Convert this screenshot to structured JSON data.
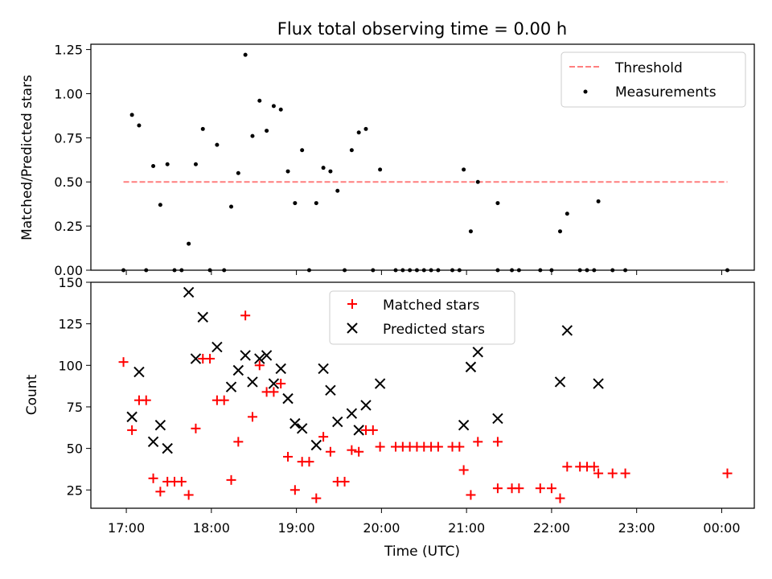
{
  "chart_data": [
    {
      "type": "scatter",
      "title": "Flux total observing time = 0.00 h",
      "xlabel": "",
      "ylabel": "Matched/Predicted stars",
      "ylim": [
        0,
        1.28
      ],
      "yticks": [
        "0.00",
        "0.25",
        "0.50",
        "0.75",
        "1.00",
        "1.25"
      ],
      "ytick_values": [
        0,
        0.25,
        0.5,
        0.75,
        1.0,
        1.25
      ],
      "legend": {
        "position": "top-right",
        "entries": [
          "Threshold",
          "Measurements"
        ]
      },
      "threshold": {
        "name": "Threshold",
        "value": 0.5,
        "x_start": "16:58",
        "x_end": "00:04",
        "color": "#ff7f7f"
      },
      "series": [
        {
          "name": "Measurements",
          "color": "#000000",
          "points": [
            [
              "16:58",
              0.0
            ],
            [
              "17:04",
              0.88
            ],
            [
              "17:09",
              0.82
            ],
            [
              "17:14",
              0.0
            ],
            [
              "17:19",
              0.59
            ],
            [
              "17:24",
              0.37
            ],
            [
              "17:29",
              0.6
            ],
            [
              "17:34",
              0.0
            ],
            [
              "17:39",
              0.0
            ],
            [
              "17:44",
              0.15
            ],
            [
              "17:49",
              0.6
            ],
            [
              "17:54",
              0.8
            ],
            [
              "17:59",
              0.0
            ],
            [
              "18:04",
              0.71
            ],
            [
              "18:09",
              0.0
            ],
            [
              "18:14",
              0.36
            ],
            [
              "18:19",
              0.55
            ],
            [
              "18:24",
              1.22
            ],
            [
              "18:29",
              0.76
            ],
            [
              "18:34",
              0.96
            ],
            [
              "18:39",
              0.79
            ],
            [
              "18:44",
              0.93
            ],
            [
              "18:49",
              0.91
            ],
            [
              "18:54",
              0.56
            ],
            [
              "18:59",
              0.38
            ],
            [
              "19:04",
              0.68
            ],
            [
              "19:09",
              0.0
            ],
            [
              "19:14",
              0.38
            ],
            [
              "19:19",
              0.58
            ],
            [
              "19:24",
              0.56
            ],
            [
              "19:29",
              0.45
            ],
            [
              "19:34",
              0.0
            ],
            [
              "19:39",
              0.68
            ],
            [
              "19:44",
              0.78
            ],
            [
              "19:49",
              0.8
            ],
            [
              "19:54",
              0.0
            ],
            [
              "19:59",
              0.57
            ],
            [
              "20:10",
              0.0
            ],
            [
              "20:15",
              0.0
            ],
            [
              "20:20",
              0.0
            ],
            [
              "20:25",
              0.0
            ],
            [
              "20:30",
              0.0
            ],
            [
              "20:35",
              0.0
            ],
            [
              "20:40",
              0.0
            ],
            [
              "20:50",
              0.0
            ],
            [
              "20:55",
              0.0
            ],
            [
              "20:58",
              0.57
            ],
            [
              "21:03",
              0.22
            ],
            [
              "21:08",
              0.5
            ],
            [
              "21:22",
              0.0
            ],
            [
              "21:22",
              0.38
            ],
            [
              "21:32",
              0.0
            ],
            [
              "21:37",
              0.0
            ],
            [
              "21:52",
              0.0
            ],
            [
              "22:00",
              0.0
            ],
            [
              "22:06",
              0.22
            ],
            [
              "22:11",
              0.32
            ],
            [
              "22:20",
              0.0
            ],
            [
              "22:25",
              0.0
            ],
            [
              "22:30",
              0.0
            ],
            [
              "22:33",
              0.39
            ],
            [
              "22:43",
              0.0
            ],
            [
              "22:52",
              0.0
            ],
            [
              "00:04",
              0.0
            ]
          ]
        }
      ]
    },
    {
      "type": "scatter",
      "title": "",
      "xlabel": "Time (UTC)",
      "ylabel": "Count",
      "ylim": [
        14,
        150
      ],
      "xlim": [
        "16:35",
        "00:23"
      ],
      "xticks": [
        "17:00",
        "18:00",
        "19:00",
        "20:00",
        "21:00",
        "22:00",
        "23:00",
        "00:00"
      ],
      "yticks": [
        "25",
        "50",
        "75",
        "100",
        "125",
        "150"
      ],
      "ytick_values": [
        25,
        50,
        75,
        100,
        125,
        150
      ],
      "legend": {
        "position": "upper-center",
        "entries": [
          "Matched stars",
          "Predicted stars"
        ]
      },
      "series": [
        {
          "name": "Matched stars",
          "marker": "plus",
          "color": "#ff0000",
          "points": [
            [
              "16:58",
              102
            ],
            [
              "17:04",
              61
            ],
            [
              "17:09",
              79
            ],
            [
              "17:14",
              79
            ],
            [
              "17:19",
              32
            ],
            [
              "17:24",
              24
            ],
            [
              "17:29",
              30
            ],
            [
              "17:34",
              30
            ],
            [
              "17:39",
              30
            ],
            [
              "17:44",
              22
            ],
            [
              "17:49",
              62
            ],
            [
              "17:54",
              104
            ],
            [
              "17:59",
              104
            ],
            [
              "18:04",
              79
            ],
            [
              "18:09",
              79
            ],
            [
              "18:14",
              31
            ],
            [
              "18:19",
              54
            ],
            [
              "18:24",
              130
            ],
            [
              "18:29",
              69
            ],
            [
              "18:34",
              100
            ],
            [
              "18:39",
              84
            ],
            [
              "18:44",
              84
            ],
            [
              "18:49",
              89
            ],
            [
              "18:54",
              45
            ],
            [
              "18:59",
              25
            ],
            [
              "19:04",
              42
            ],
            [
              "19:09",
              42
            ],
            [
              "19:14",
              20
            ],
            [
              "19:19",
              57
            ],
            [
              "19:24",
              48
            ],
            [
              "19:29",
              30
            ],
            [
              "19:34",
              30
            ],
            [
              "19:39",
              49
            ],
            [
              "19:44",
              48
            ],
            [
              "19:49",
              61
            ],
            [
              "19:54",
              61
            ],
            [
              "19:59",
              51
            ],
            [
              "20:10",
              51
            ],
            [
              "20:15",
              51
            ],
            [
              "20:20",
              51
            ],
            [
              "20:25",
              51
            ],
            [
              "20:30",
              51
            ],
            [
              "20:35",
              51
            ],
            [
              "20:40",
              51
            ],
            [
              "20:50",
              51
            ],
            [
              "20:55",
              51
            ],
            [
              "20:58",
              37
            ],
            [
              "21:03",
              22
            ],
            [
              "21:08",
              54
            ],
            [
              "21:22",
              54
            ],
            [
              "21:22",
              26
            ],
            [
              "21:32",
              26
            ],
            [
              "21:37",
              26
            ],
            [
              "21:52",
              26
            ],
            [
              "22:00",
              26
            ],
            [
              "22:06",
              20
            ],
            [
              "22:11",
              39
            ],
            [
              "22:20",
              39
            ],
            [
              "22:25",
              39
            ],
            [
              "22:30",
              39
            ],
            [
              "22:33",
              35
            ],
            [
              "22:43",
              35
            ],
            [
              "22:52",
              35
            ],
            [
              "00:04",
              35
            ]
          ]
        },
        {
          "name": "Predicted stars",
          "marker": "x",
          "color": "#000000",
          "points": [
            [
              "17:04",
              69
            ],
            [
              "17:09",
              96
            ],
            [
              "17:19",
              54
            ],
            [
              "17:24",
              64
            ],
            [
              "17:29",
              50
            ],
            [
              "17:44",
              144
            ],
            [
              "17:49",
              104
            ],
            [
              "17:54",
              129
            ],
            [
              "18:04",
              111
            ],
            [
              "18:14",
              87
            ],
            [
              "18:19",
              97
            ],
            [
              "18:24",
              106
            ],
            [
              "18:29",
              90
            ],
            [
              "18:34",
              104
            ],
            [
              "18:39",
              106
            ],
            [
              "18:44",
              89
            ],
            [
              "18:49",
              98
            ],
            [
              "18:54",
              80
            ],
            [
              "18:59",
              65
            ],
            [
              "19:04",
              62
            ],
            [
              "19:14",
              52
            ],
            [
              "19:19",
              98
            ],
            [
              "19:24",
              85
            ],
            [
              "19:29",
              66
            ],
            [
              "19:39",
              71
            ],
            [
              "19:44",
              61
            ],
            [
              "19:49",
              76
            ],
            [
              "19:59",
              89
            ],
            [
              "20:58",
              64
            ],
            [
              "21:03",
              99
            ],
            [
              "21:08",
              108
            ],
            [
              "21:22",
              68
            ],
            [
              "22:06",
              90
            ],
            [
              "22:11",
              121
            ],
            [
              "22:33",
              89
            ]
          ]
        }
      ]
    }
  ]
}
